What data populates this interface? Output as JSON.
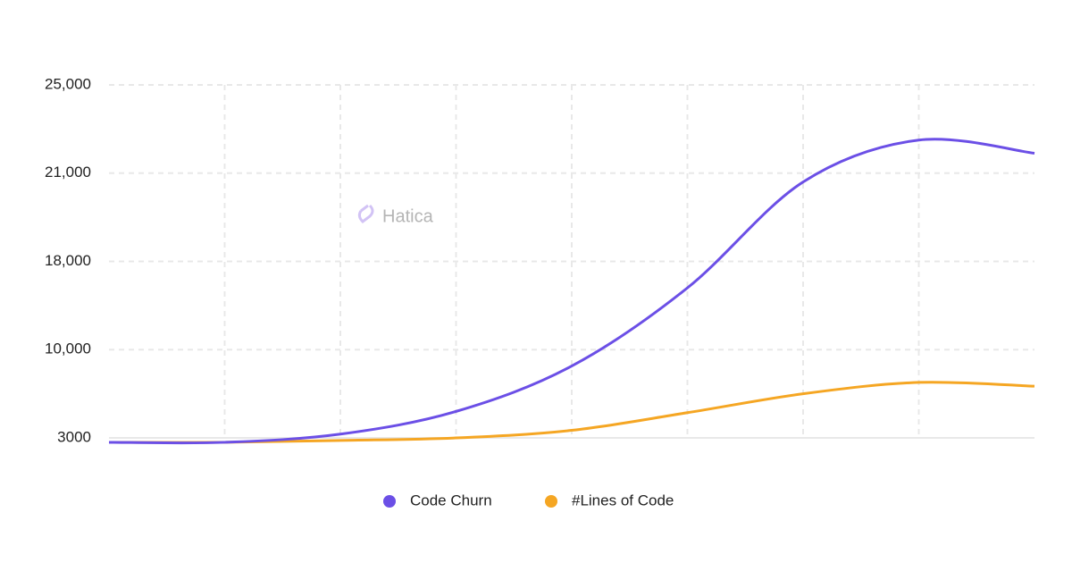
{
  "chart_data": {
    "type": "line",
    "watermark": "Hatica",
    "categories": [
      null,
      null,
      null,
      null,
      null,
      null,
      null,
      null,
      null
    ],
    "series": [
      {
        "name": "Code Churn",
        "color": "#6b4fe6",
        "values": [
          2650,
          2650,
          3300,
          5100,
          8700,
          15600,
          20700,
          22500,
          21900
        ]
      },
      {
        "name": "#Lines of Code",
        "color": "#f5a623",
        "values": [
          2650,
          2650,
          2800,
          3000,
          3600,
          5000,
          6500,
          7400,
          7100
        ]
      }
    ],
    "ylim": [
      3000,
      25000
    ],
    "yticks": [
      3000,
      {
        "value": 10000,
        "label": "10,000"
      },
      {
        "value": 18000,
        "label": "18,000"
      },
      {
        "value": 21000,
        "label": "21,000"
      },
      {
        "value": 25000,
        "label": "25,000"
      }
    ],
    "y_scale": "piecewise",
    "grid": true,
    "legend": "bottom"
  }
}
